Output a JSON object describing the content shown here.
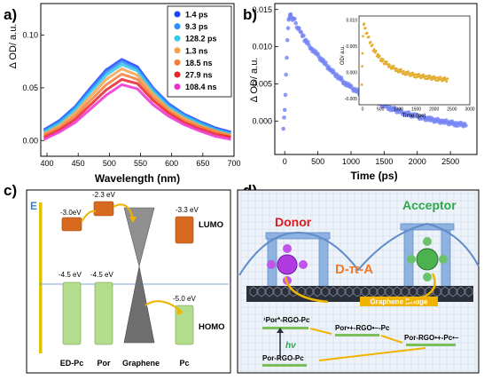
{
  "panels": {
    "a": {
      "letter": "a)"
    },
    "b": {
      "letter": "b)"
    },
    "c": {
      "letter": "c)"
    },
    "d": {
      "letter": "d)"
    }
  },
  "chart_data": [
    {
      "type": "line",
      "panel": "a",
      "xlabel": "Wavelength (nm)",
      "ylabel": "Δ OD/ a.u.",
      "xlim": [
        390,
        700
      ],
      "ylim": [
        -0.015,
        0.13
      ],
      "xticks": [
        "400",
        "450",
        "500",
        "550",
        "600",
        "650",
        "700"
      ],
      "xtick_values": [
        400,
        450,
        500,
        550,
        600,
        650,
        700
      ],
      "yticks": [
        "0.00",
        "0.05",
        "0.10"
      ],
      "ytick_values": [
        0.0,
        0.05,
        0.1
      ],
      "legend_position": "top-right",
      "x": [
        395,
        420,
        445,
        470,
        495,
        520,
        545,
        570,
        595,
        620,
        645,
        670,
        695
      ],
      "series": [
        {
          "name": "1.4 ps",
          "color": "#1f3fff",
          "values": [
            0.01,
            0.019,
            0.032,
            0.05,
            0.067,
            0.077,
            0.07,
            0.05,
            0.035,
            0.025,
            0.018,
            0.012,
            0.008
          ]
        },
        {
          "name": "9.3 ps",
          "color": "#2f8fff",
          "values": [
            0.009,
            0.018,
            0.031,
            0.048,
            0.065,
            0.075,
            0.068,
            0.049,
            0.034,
            0.024,
            0.017,
            0.011,
            0.007
          ]
        },
        {
          "name": "128.2 ps",
          "color": "#36c8e8",
          "values": [
            0.008,
            0.016,
            0.029,
            0.046,
            0.062,
            0.072,
            0.066,
            0.047,
            0.032,
            0.023,
            0.016,
            0.01,
            0.006
          ]
        },
        {
          "name": "1.3 ns",
          "color": "#f6a04a",
          "values": [
            0.006,
            0.014,
            0.026,
            0.042,
            0.058,
            0.068,
            0.062,
            0.044,
            0.03,
            0.021,
            0.014,
            0.009,
            0.005
          ]
        },
        {
          "name": "18.5 ns",
          "color": "#f57c3a",
          "values": [
            0.005,
            0.012,
            0.023,
            0.038,
            0.053,
            0.063,
            0.058,
            0.041,
            0.028,
            0.019,
            0.013,
            0.008,
            0.004
          ]
        },
        {
          "name": "27.9 ns",
          "color": "#e8232c",
          "values": [
            0.003,
            0.01,
            0.02,
            0.034,
            0.048,
            0.058,
            0.054,
            0.038,
            0.026,
            0.017,
            0.011,
            0.006,
            0.003
          ]
        },
        {
          "name": "108.4 ns",
          "color": "#ee2fd0",
          "values": [
            0.001,
            0.008,
            0.017,
            0.03,
            0.043,
            0.053,
            0.049,
            0.034,
            0.023,
            0.015,
            0.009,
            0.004,
            0.001
          ]
        }
      ]
    },
    {
      "type": "scatter",
      "panel": "b",
      "xlabel": "Time (ps)",
      "ylabel": "Δ OD/ a.u.",
      "xlim": [
        -150,
        2900
      ],
      "ylim": [
        -0.0045,
        0.0158
      ],
      "xticks": [
        "0",
        "500",
        "1000",
        "1500",
        "2000",
        "2500"
      ],
      "xtick_values": [
        0,
        500,
        1000,
        1500,
        2000,
        2500
      ],
      "yticks": [
        "0.000",
        "0.005",
        "0.010",
        "0.015"
      ],
      "ytick_values": [
        0.0,
        0.005,
        0.01,
        0.015
      ],
      "series": [
        {
          "name": "",
          "color": "#6f7ff2",
          "x": [
            -20,
            0,
            20,
            40,
            60,
            80,
            100,
            150,
            200,
            250,
            300,
            400,
            500,
            600,
            700,
            800,
            900,
            1000,
            1200,
            1400,
            1600,
            1800,
            2000,
            2200,
            2400,
            2600,
            2750
          ],
          "values": [
            -0.0008,
            0.0015,
            0.006,
            0.011,
            0.0135,
            0.0145,
            0.014,
            0.0135,
            0.0125,
            0.0118,
            0.011,
            0.0098,
            0.0088,
            0.0078,
            0.0068,
            0.006,
            0.0052,
            0.0045,
            0.0034,
            0.0025,
            0.0017,
            0.0011,
            0.0006,
            0.0002,
            -0.0001,
            -0.0004,
            -0.0005
          ]
        }
      ]
    },
    {
      "type": "scatter",
      "panel": "b-inset",
      "xlabel": "Time (ps)",
      "ylabel": "OD/ a.u.",
      "xlim": [
        -100,
        3000
      ],
      "ylim": [
        -0.0062,
        0.0108
      ],
      "xticks": [
        "0",
        "500",
        "1000",
        "1500",
        "2000",
        "2500",
        "3000"
      ],
      "xtick_values": [
        0,
        500,
        1000,
        1500,
        2000,
        2500,
        3000
      ],
      "yticks": [
        "-0.005",
        "0.000",
        "0.005",
        "0.010"
      ],
      "ytick_values": [
        -0.005,
        0.0,
        0.005,
        0.01
      ],
      "series": [
        {
          "name": "",
          "color": "#e3ad2f",
          "x": [
            -20,
            0,
            30,
            60,
            100,
            200,
            300,
            400,
            500,
            600,
            800,
            1000,
            1200,
            1500,
            1800,
            2100,
            2400
          ],
          "values": [
            -0.002,
            0.004,
            0.0095,
            0.0088,
            0.0078,
            0.006,
            0.0045,
            0.0035,
            0.0026,
            0.002,
            0.0011,
            0.0004,
            -0.0001,
            -0.0006,
            -0.0009,
            -0.0012,
            -0.0014
          ]
        }
      ]
    }
  ],
  "energy_diagram": {
    "axis_label": "E",
    "lumo_label": "LUMO",
    "homo_label": "HOMO",
    "levels": {
      "edpc_lumo": "-3.0eV",
      "por_lumo": "-2.3 eV",
      "pc_lumo": "-3.3 eV",
      "edpc_homo": "-4.5 eV",
      "por_homo": "-4.5 eV",
      "pc_homo": "-5.0 eV"
    },
    "x_labels": [
      "ED-Pc",
      "Por",
      "Graphene",
      "Pc"
    ],
    "colors": {
      "lumo": "#d66a1f",
      "homo": "#b3dd8c",
      "axis": "#ddc200",
      "fermi": "#7fa7d8",
      "arrow": "#f0b400"
    }
  },
  "schematic": {
    "donor": "Donor",
    "acceptor": "Acceptor",
    "dpa": "D-π-A",
    "bridge": "Graphene Bridge",
    "states": {
      "s1": "¹Por*-RGO-Pc",
      "s2": "Por•+-RGO•–-Pc",
      "s3": "Por-RGO•+-Pc•–",
      "ground": "Por-RGO-Pc"
    },
    "hv": "hν",
    "colors": {
      "donor": "#e0191f",
      "acceptor": "#2aa84a",
      "dpa": "#f07b2a",
      "state_bar": "#7bbf5a",
      "bridge_box": "#f0b400",
      "arrow": "#f0b400",
      "bridge_blue": "#6a9ad6"
    }
  }
}
